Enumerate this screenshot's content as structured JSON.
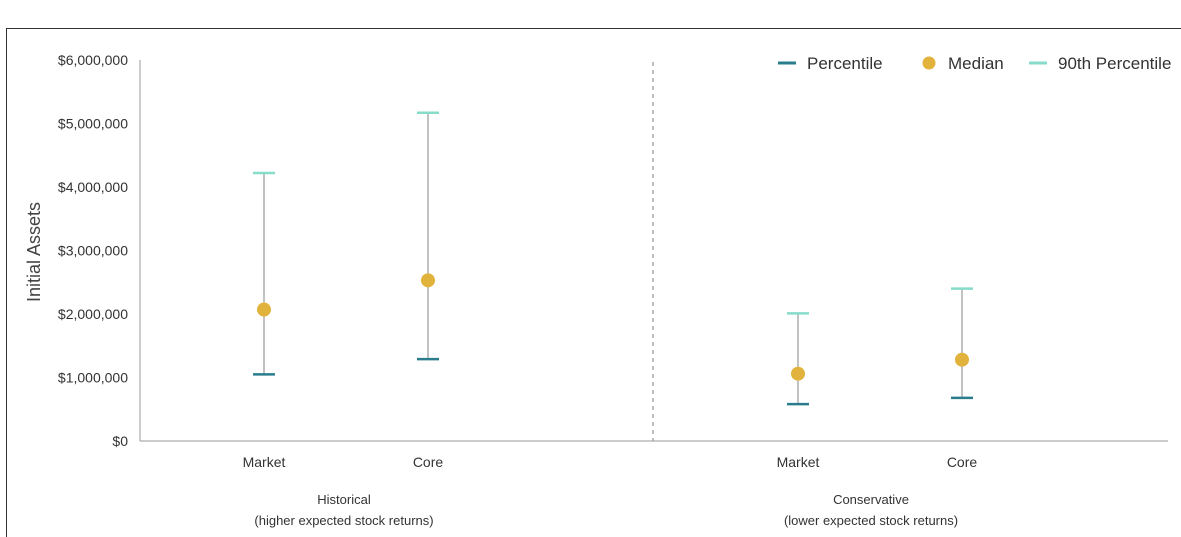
{
  "chart_data": {
    "type": "scatter",
    "ylabel": "Initial Assets",
    "xlabel": "",
    "ylim": [
      0,
      6000000
    ],
    "yticks": [
      0,
      1000000,
      2000000,
      3000000,
      4000000,
      5000000,
      6000000
    ],
    "ytick_labels": [
      "$0",
      "$1,000,000",
      "$2,000,000",
      "$3,000,000",
      "$4,000,000",
      "$5,000,000",
      "$6,000,000"
    ],
    "legend": {
      "position": "top-right",
      "items": [
        {
          "label": "Percentile",
          "color": "#2a7d8c",
          "marker": "dash"
        },
        {
          "label": "Median",
          "color": "#e2b33c",
          "marker": "circle"
        },
        {
          "label": "90th Percentile",
          "color": "#86dcc9",
          "marker": "dash"
        }
      ]
    },
    "groups": [
      {
        "label_line1": "Historical",
        "label_line2": "(higher expected stock returns)",
        "categories": [
          {
            "name": "Market",
            "low": 1050000,
            "median": 2070000,
            "high": 4220000
          },
          {
            "name": "Core",
            "low": 1290000,
            "median": 2530000,
            "high": 5170000
          }
        ]
      },
      {
        "label_line1": "Conservative",
        "label_line2": "(lower expected stock returns)",
        "categories": [
          {
            "name": "Market",
            "low": 580000,
            "median": 1060000,
            "high": 2010000
          },
          {
            "name": "Core",
            "low": 680000,
            "median": 1280000,
            "high": 2400000
          }
        ]
      }
    ],
    "colors": {
      "low": "#2a7d8c",
      "median": "#e2b33c",
      "high": "#86dcc9",
      "whisker": "#9a9a9a",
      "axis": "#999999",
      "divider": "#9a9a9a"
    }
  }
}
